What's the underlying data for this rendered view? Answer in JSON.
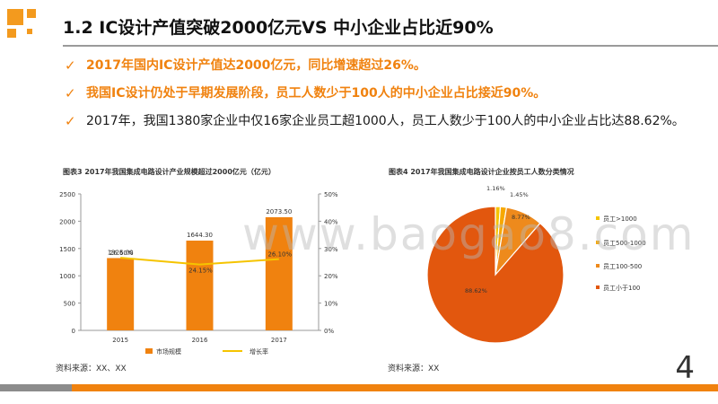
{
  "header": {
    "title": "1.2 IC设计产值突破2000亿元VS 中小企业占比近90%"
  },
  "bullets": [
    {
      "text": "2017年国内IC设计产值达2000亿元，同比增速超过26%。",
      "style": "orange"
    },
    {
      "text": "我国IC设计仍处于早期发展阶段，员工人数少于100人的中小企业占比接近90%。",
      "style": "orange"
    },
    {
      "text": "2017年，我国1380家企业中仅16家企业员工超1000人，员工人数少于100人的中小企业占比达88.62%。",
      "style": "dark"
    }
  ],
  "colors": {
    "accent": "#f0820f",
    "line": "#f5c400",
    "pie_small1": "#f5c400",
    "pie_small2": "#f7a800",
    "pie_mid": "#ee8a1c",
    "pie_main": "#e2570e"
  },
  "chart_data": [
    {
      "type": "bar",
      "title": "图表3 2017年我国集成电路设计产业规模超过2000亿元（亿元）",
      "categories": [
        "2015",
        "2016",
        "2017"
      ],
      "series": [
        {
          "name": "市场规模",
          "type": "bar",
          "values": [
            1325.0,
            1644.3,
            2073.5
          ],
          "labels": [
            "1325.00",
            "1644.30",
            "2073.50"
          ]
        },
        {
          "name": "增长率",
          "type": "line",
          "axis": "right",
          "values": [
            26.6,
            24.15,
            26.1
          ],
          "labels": [
            "26.60%",
            "24.15%",
            "26.10%"
          ]
        }
      ],
      "ylim": [
        0,
        2500
      ],
      "yticks": [
        "0",
        "500",
        "1000",
        "1500",
        "2000",
        "2500"
      ],
      "y2lim": [
        0,
        50
      ],
      "y2ticks": [
        "0%",
        "10%",
        "20%",
        "30%",
        "40%",
        "50%"
      ],
      "legend_position": "bottom",
      "source": "资料来源：XX、XX"
    },
    {
      "type": "pie",
      "title": "图表4 2017年我国集成电路设计企业按员工人数分类情况",
      "labels": [
        "员工>1000",
        "员工500-1000",
        "员工100-500",
        "员工小于100"
      ],
      "values": [
        1.16,
        1.45,
        8.77,
        88.62
      ],
      "value_labels": [
        "1.16%",
        "1.45%",
        "8.77%",
        "88.62%"
      ],
      "legend_position": "right",
      "source": "资料来源：XX"
    }
  ],
  "page_number": "4",
  "watermark": "www.baogao8.com"
}
